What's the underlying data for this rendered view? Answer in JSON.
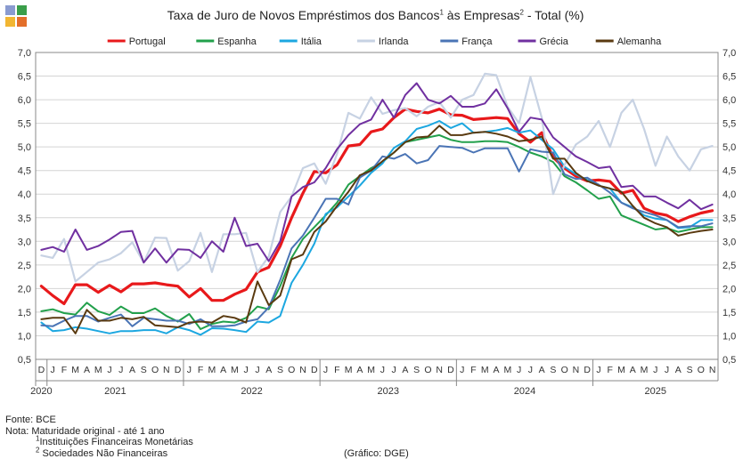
{
  "header": {
    "title_main": "Taxa de Juro de Novos Empréstimos dos Bancos",
    "title_sup1": "1",
    "title_mid": " às Empresas",
    "title_sup2": "2",
    "title_end": " - Total (%)"
  },
  "logo": {
    "icon": "dge-logo-icon",
    "colors": [
      "#8a9bd0",
      "#3a9e4a",
      "#f2b632",
      "#e36f2a"
    ]
  },
  "chart_data": {
    "type": "line",
    "title": "Taxa de Juro de Novos Empréstimos dos Bancos às Empresas - Total (%)",
    "ylim": [
      0.5,
      7.0
    ],
    "yticks": [
      "7,0",
      "6,5",
      "6,0",
      "5,5",
      "5,0",
      "4,5",
      "4,0",
      "3,5",
      "3,0",
      "2,5",
      "2,0",
      "1,5",
      "1,0",
      "0,5"
    ],
    "ytick_values": [
      7.0,
      6.5,
      6.0,
      5.5,
      5.0,
      4.5,
      4.0,
      3.5,
      3.0,
      2.5,
      2.0,
      1.5,
      1.0,
      0.5
    ],
    "month_labels": [
      "D",
      "J",
      "F",
      "M",
      "A",
      "M",
      "J",
      "J",
      "A",
      "S",
      "O",
      "N",
      "D",
      "J",
      "F",
      "M",
      "A",
      "M",
      "J",
      "J",
      "A",
      "S",
      "O",
      "N",
      "D",
      "J",
      "F",
      "M",
      "A",
      "M",
      "J",
      "J",
      "A",
      "S",
      "O",
      "N",
      "D",
      "J",
      "F",
      "M",
      "A",
      "M",
      "J",
      "J",
      "A",
      "S",
      "O",
      "N",
      "D",
      "J",
      "F",
      "M",
      "A",
      "M",
      "J",
      "J",
      "A",
      "S",
      "O",
      "N"
    ],
    "year_labels": [
      {
        "label": "2020",
        "start": 0,
        "end": 0
      },
      {
        "label": "2021",
        "start": 1,
        "end": 12
      },
      {
        "label": "2022",
        "start": 13,
        "end": 24
      },
      {
        "label": "2023",
        "start": 25,
        "end": 36
      },
      {
        "label": "2024",
        "start": 37,
        "end": 48
      },
      {
        "label": "2025",
        "start": 49,
        "end": 59
      }
    ],
    "year_boundaries": [
      1,
      13,
      25,
      37,
      49
    ],
    "grid": true,
    "legend_position": "top",
    "series": [
      {
        "name": "Portugal",
        "color": "#e8191b",
        "width": 3.2,
        "values": [
          2.05,
          1.85,
          1.68,
          2.08,
          2.08,
          1.92,
          2.07,
          1.93,
          2.1,
          2.1,
          2.12,
          2.08,
          2.05,
          1.82,
          2.0,
          1.75,
          1.75,
          1.88,
          1.98,
          2.35,
          2.45,
          2.9,
          3.5,
          4.02,
          4.48,
          4.45,
          4.62,
          5.02,
          5.05,
          5.32,
          5.38,
          5.62,
          5.8,
          5.75,
          5.72,
          5.8,
          5.68,
          5.67,
          5.58,
          5.6,
          5.62,
          5.6,
          5.28,
          5.1,
          5.3,
          4.78,
          4.55,
          4.38,
          4.28,
          4.3,
          4.27,
          4.02,
          4.08,
          3.7,
          3.6,
          3.55,
          3.42,
          3.52,
          3.6,
          3.65
        ]
      },
      {
        "name": "Espanha",
        "color": "#22a04b",
        "width": 2,
        "values": [
          1.52,
          1.56,
          1.48,
          1.45,
          1.7,
          1.52,
          1.44,
          1.62,
          1.48,
          1.48,
          1.58,
          1.42,
          1.3,
          1.46,
          1.14,
          1.25,
          1.3,
          1.28,
          1.38,
          1.62,
          1.56,
          2.05,
          2.65,
          3.05,
          3.3,
          3.55,
          3.82,
          4.2,
          4.38,
          4.55,
          4.68,
          4.88,
          5.1,
          5.15,
          5.2,
          5.25,
          5.15,
          5.1,
          5.1,
          5.12,
          5.12,
          5.1,
          5.0,
          4.88,
          4.8,
          4.68,
          4.38,
          4.25,
          4.08,
          3.9,
          3.95,
          3.55,
          3.45,
          3.35,
          3.25,
          3.28,
          3.2,
          3.25,
          3.3,
          3.3
        ]
      },
      {
        "name": "Itália",
        "color": "#1ca7e0",
        "width": 2,
        "values": [
          1.28,
          1.1,
          1.12,
          1.18,
          1.15,
          1.1,
          1.05,
          1.1,
          1.1,
          1.12,
          1.12,
          1.05,
          1.18,
          1.12,
          1.02,
          1.16,
          1.15,
          1.12,
          1.08,
          1.3,
          1.28,
          1.42,
          2.12,
          2.5,
          2.95,
          3.58,
          3.72,
          3.95,
          4.18,
          4.45,
          4.65,
          4.98,
          5.12,
          5.38,
          5.45,
          5.55,
          5.4,
          5.5,
          5.3,
          5.32,
          5.35,
          5.4,
          5.3,
          5.35,
          5.15,
          4.95,
          4.58,
          4.42,
          4.3,
          4.18,
          4.12,
          3.82,
          3.72,
          3.55,
          3.48,
          3.45,
          3.28,
          3.3,
          3.45,
          3.45
        ]
      },
      {
        "name": "Irlanda",
        "color": "#c7d2e3",
        "width": 2.2,
        "values": [
          2.7,
          2.65,
          3.05,
          2.15,
          2.35,
          2.55,
          2.62,
          2.75,
          2.98,
          2.55,
          3.08,
          3.07,
          2.38,
          2.58,
          3.18,
          2.35,
          3.15,
          3.15,
          3.18,
          2.35,
          2.68,
          3.62,
          3.95,
          4.55,
          4.65,
          4.22,
          4.85,
          5.72,
          5.6,
          6.05,
          5.7,
          5.78,
          5.82,
          5.65,
          5.85,
          5.95,
          5.62,
          6.0,
          6.1,
          6.55,
          6.52,
          5.85,
          5.5,
          6.48,
          5.62,
          4.0,
          4.62,
          5.05,
          5.22,
          5.55,
          5.0,
          5.72,
          6.0,
          5.38,
          4.6,
          5.22,
          4.8,
          4.5,
          4.95,
          5.02
        ]
      },
      {
        "name": "França",
        "color": "#4a74b5",
        "width": 2,
        "values": [
          1.22,
          1.2,
          1.32,
          1.42,
          1.42,
          1.3,
          1.38,
          1.45,
          1.2,
          1.38,
          1.35,
          1.32,
          1.32,
          1.25,
          1.35,
          1.2,
          1.2,
          1.22,
          1.3,
          1.35,
          1.6,
          2.18,
          2.85,
          3.12,
          3.5,
          3.9,
          3.9,
          3.78,
          4.35,
          4.5,
          4.8,
          4.75,
          4.85,
          4.65,
          4.72,
          5.02,
          5.0,
          4.98,
          4.88,
          4.97,
          4.97,
          4.97,
          4.48,
          4.95,
          4.9,
          4.88,
          4.42,
          4.32,
          4.35,
          4.2,
          4.03,
          3.82,
          3.7,
          3.62,
          3.55,
          3.45,
          3.3,
          3.32,
          3.32,
          3.38
        ]
      },
      {
        "name": "Grécia",
        "color": "#7030a0",
        "width": 2,
        "values": [
          2.82,
          2.88,
          2.78,
          3.25,
          2.82,
          2.9,
          3.04,
          3.2,
          3.22,
          2.55,
          2.85,
          2.55,
          2.83,
          2.82,
          2.65,
          3.0,
          2.78,
          3.5,
          2.9,
          2.95,
          2.58,
          3.0,
          3.95,
          4.15,
          4.25,
          4.55,
          4.95,
          5.25,
          5.48,
          5.58,
          6.0,
          5.62,
          6.1,
          6.35,
          6.0,
          5.92,
          6.08,
          5.85,
          5.85,
          5.92,
          6.22,
          5.82,
          5.32,
          5.62,
          5.58,
          5.2,
          5.0,
          4.8,
          4.68,
          4.55,
          4.58,
          4.15,
          4.18,
          3.95,
          3.95,
          3.82,
          3.7,
          3.88,
          3.68,
          3.78
        ]
      },
      {
        "name": "Alemanha",
        "color": "#5a3a10",
        "width": 2,
        "values": [
          1.35,
          1.38,
          1.38,
          1.05,
          1.55,
          1.32,
          1.32,
          1.38,
          1.35,
          1.4,
          1.22,
          1.2,
          1.18,
          1.28,
          1.3,
          1.28,
          1.42,
          1.38,
          1.28,
          2.15,
          1.65,
          1.85,
          2.62,
          2.72,
          3.2,
          3.42,
          3.75,
          4.05,
          4.4,
          4.5,
          4.7,
          4.88,
          5.1,
          5.2,
          5.22,
          5.45,
          5.25,
          5.25,
          5.3,
          5.32,
          5.28,
          5.22,
          5.12,
          5.15,
          5.22,
          4.75,
          4.75,
          4.45,
          4.28,
          4.18,
          4.12,
          4.05,
          3.75,
          3.5,
          3.38,
          3.3,
          3.12,
          3.18,
          3.22,
          3.25
        ]
      }
    ]
  },
  "footer": {
    "source": "Fonte: BCE",
    "note": "Nota: Maturidade original - até 1 ano",
    "note1_sup": "1",
    "note1": "Instituições Financeiras Monetárias",
    "note2_sup": "2",
    "note2": " Sociedades Não Financeiras",
    "credit": "(Gráfico: DGE)"
  }
}
